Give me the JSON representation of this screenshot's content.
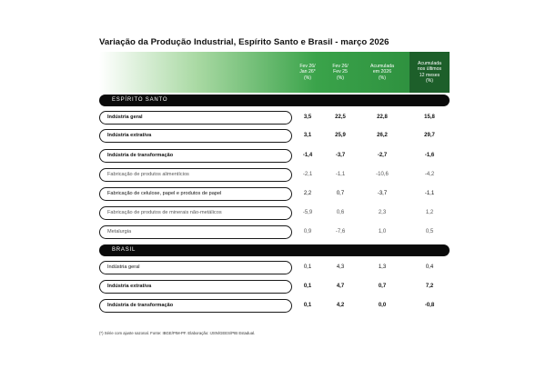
{
  "title": "Variação da Produção Industrial, Espírito Santo e Brasil - março 2026",
  "headers": [
    "Fev 26/\nJan 26*\n(%)",
    "Fev 26/\nFev 25\n(%)",
    "Acumulada\nem 2026\n(%)",
    "Acumulada\nnos últimos\n12 meses\n(%)"
  ],
  "sections": {
    "es": "ESPÍRITO SANTO",
    "br": "BRASIL"
  },
  "es_rows": [
    {
      "label": "Indústria geral",
      "v": [
        "3,5",
        "22,5",
        "22,8",
        "15,8"
      ],
      "style": "bold"
    },
    {
      "label": "Indústria extrativa",
      "v": [
        "3,1",
        "25,9",
        "26,2",
        "29,7"
      ],
      "style": "bold"
    },
    {
      "label": "Indústria de transformação",
      "v": [
        "-1,4",
        "-3,7",
        "-2,7",
        "-1,6"
      ],
      "style": "bold"
    },
    {
      "label": "Fabricação de produtos alimentícios",
      "v": [
        "-2,1",
        "-1,1",
        "-10,6",
        "-4,2"
      ],
      "style": "light"
    },
    {
      "label": "Fabricação de celulose, papel e produtos de papel",
      "v": [
        "2,2",
        "0,7",
        "-3,7",
        "-1,1"
      ],
      "style": "normal"
    },
    {
      "label": "Fabricação de produtos de minerais não-metálicos",
      "v": [
        "-5,9",
        "0,6",
        "2,3",
        "1,2"
      ],
      "style": "light"
    },
    {
      "label": "Metalurgia",
      "v": [
        "0,9",
        "-7,6",
        "1,0",
        "0,5"
      ],
      "style": "light"
    }
  ],
  "br_rows": [
    {
      "label": "Indústria geral",
      "v": [
        "0,1",
        "4,3",
        "1,3",
        "0,4"
      ],
      "style": "normal"
    },
    {
      "label": "Indústria extrativa",
      "v": [
        "0,1",
        "4,7",
        "0,7",
        "7,2"
      ],
      "style": "bold"
    },
    {
      "label": "Indústria de transformação",
      "v": [
        "0,1",
        "4,2",
        "0,0",
        "-0,8"
      ],
      "style": "bold"
    }
  ],
  "note": "(*) Série com ajuste sazonal. Fonte: IBGE/PIM-PF. Elaboração: IJSN/GEES/PIB Estadual."
}
